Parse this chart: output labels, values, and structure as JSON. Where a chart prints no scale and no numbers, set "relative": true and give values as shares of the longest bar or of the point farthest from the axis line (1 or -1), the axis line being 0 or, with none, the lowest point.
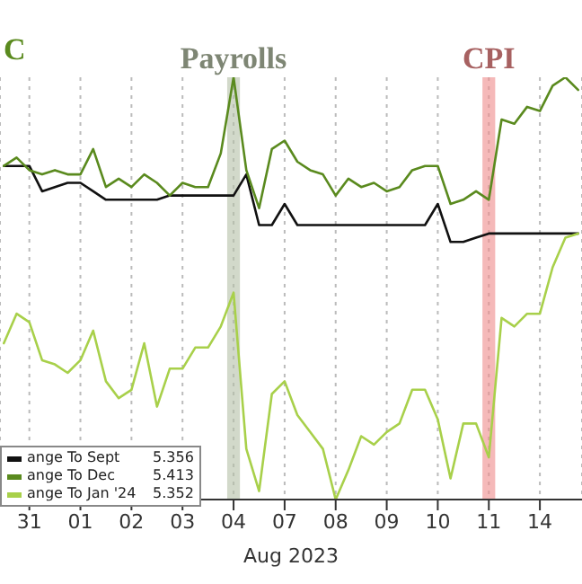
{
  "chart_data": {
    "type": "line",
    "relative": true,
    "xlabel": "Aug 2023",
    "categories": [
      null,
      null,
      "31",
      null,
      null,
      null,
      "01",
      null,
      null,
      null,
      "02",
      null,
      null,
      null,
      "03",
      null,
      null,
      null,
      "04",
      null,
      null,
      null,
      "07",
      null,
      null,
      null,
      "08",
      null,
      null,
      null,
      "09",
      null,
      null,
      null,
      "10",
      null,
      null,
      null,
      "11",
      null,
      null,
      null,
      "14",
      null,
      null,
      null
    ],
    "grid": "x",
    "legend": "bottom left",
    "bands": [
      {
        "axis": "x",
        "from": "04",
        "to": "04",
        "label": "Payrolls",
        "color": "#b4bfa6"
      },
      {
        "axis": "x",
        "from": "11",
        "to": "11",
        "label": "CPI",
        "color": "#ef8a8a"
      }
    ],
    "annotations": [
      "C",
      "5.356",
      "5.413",
      "5.352"
    ],
    "series": [
      {
        "name": "ange To Sept",
        "color": "#111111",
        "values": [
          0.79,
          0.79,
          0.79,
          0.73,
          0.74,
          0.75,
          0.75,
          0.73,
          0.71,
          0.71,
          0.71,
          0.71,
          0.71,
          0.72,
          0.72,
          0.72,
          0.72,
          0.72,
          0.72,
          0.77,
          0.65,
          0.65,
          0.7,
          0.65,
          0.65,
          0.65,
          0.65,
          0.65,
          0.65,
          0.65,
          0.65,
          0.65,
          0.65,
          0.65,
          0.7,
          0.61,
          0.61,
          0.62,
          0.63,
          0.63,
          0.63,
          0.63,
          0.63,
          0.63,
          0.63,
          0.63
        ]
      },
      {
        "name": "ange To Dec",
        "color": "#5a8a1e",
        "values": [
          0.79,
          0.81,
          0.78,
          0.77,
          0.78,
          0.77,
          0.77,
          0.83,
          0.74,
          0.76,
          0.74,
          0.77,
          0.75,
          0.72,
          0.75,
          0.74,
          0.74,
          0.82,
          1,
          0.78,
          0.69,
          0.83,
          0.85,
          0.8,
          0.78,
          0.77,
          0.72,
          0.76,
          0.74,
          0.75,
          0.73,
          0.74,
          0.78,
          0.79,
          0.79,
          0.7,
          0.71,
          0.73,
          0.71,
          0.9,
          0.89,
          0.93,
          0.92,
          0.98,
          1,
          0.97
        ]
      },
      {
        "name": "ange To Jan '24",
        "color": "#a8d04a",
        "values": [
          0.37,
          0.44,
          0.42,
          0.33,
          0.32,
          0.3,
          0.33,
          0.4,
          0.28,
          0.24,
          0.26,
          0.37,
          0.22,
          0.31,
          0.31,
          0.36,
          0.36,
          0.41,
          0.49,
          0.12,
          0.02,
          0.25,
          0.28,
          0.2,
          0.16,
          0.12,
          0,
          0.07,
          0.15,
          0.13,
          0.16,
          0.18,
          0.26,
          0.26,
          0.19,
          0.05,
          0.18,
          0.18,
          0.1,
          0.43,
          0.41,
          0.44,
          0.44,
          0.55,
          0.62,
          0.63
        ]
      }
    ]
  }
}
